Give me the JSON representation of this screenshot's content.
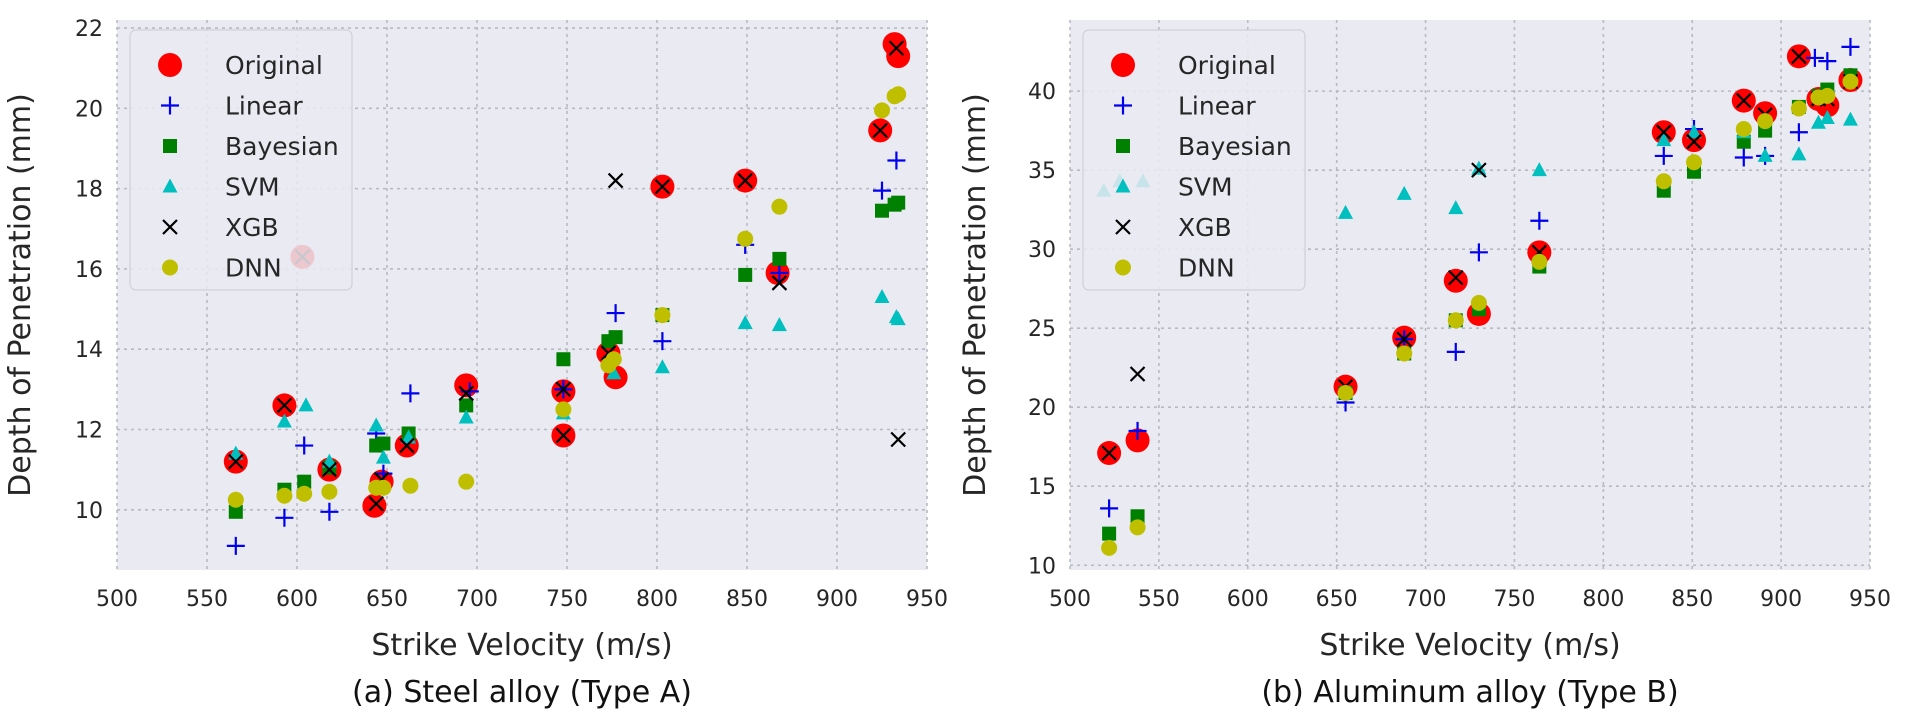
{
  "chart_data": [
    {
      "type": "scatter",
      "caption": "(a) Steel alloy (Type A)",
      "xlabel": "Strike Velocity (m/s)",
      "ylabel": "Depth of Penetration (mm)",
      "xlim": [
        500,
        950
      ],
      "ylim": [
        8.5,
        22.2
      ],
      "xticks": [
        500,
        550,
        600,
        650,
        700,
        750,
        800,
        850,
        900,
        950
      ],
      "yticks": [
        10,
        12,
        14,
        16,
        18,
        20,
        22
      ],
      "grid": true,
      "legend_position": "top-left",
      "series": [
        {
          "name": "Original",
          "marker": "circle",
          "color": "#ff0000",
          "points": [
            [
              566,
              11.2
            ],
            [
              593,
              12.6
            ],
            [
              603,
              16.3
            ],
            [
              618,
              11.0
            ],
            [
              643,
              10.1
            ],
            [
              647,
              10.7
            ],
            [
              661,
              11.6
            ],
            [
              694,
              13.1
            ],
            [
              748,
              12.95
            ],
            [
              748,
              11.85
            ],
            [
              773,
              13.9
            ],
            [
              777,
              13.3
            ],
            [
              803,
              18.05
            ],
            [
              849,
              18.2
            ],
            [
              867,
              15.9
            ],
            [
              924,
              19.45
            ],
            [
              932,
              21.6
            ],
            [
              934,
              21.3
            ]
          ]
        },
        {
          "name": "Linear",
          "marker": "plus",
          "color": "#0000ee",
          "points": [
            [
              566,
              9.1
            ],
            [
              593,
              9.8
            ],
            [
              604,
              11.6
            ],
            [
              618,
              9.95
            ],
            [
              644,
              11.9
            ],
            [
              648,
              10.9
            ],
            [
              663,
              12.9
            ],
            [
              696,
              12.95
            ],
            [
              748,
              13.0
            ],
            [
              777,
              14.9
            ],
            [
              803,
              14.2
            ],
            [
              849,
              16.6
            ],
            [
              868,
              15.9
            ],
            [
              925,
              17.95
            ],
            [
              933,
              18.7
            ]
          ]
        },
        {
          "name": "Bayesian",
          "marker": "square",
          "color": "#008000",
          "points": [
            [
              566,
              9.95
            ],
            [
              593,
              10.5
            ],
            [
              604,
              10.7
            ],
            [
              618,
              11.05
            ],
            [
              644,
              11.6
            ],
            [
              648,
              11.65
            ],
            [
              662,
              11.9
            ],
            [
              694,
              12.6
            ],
            [
              748,
              13.75
            ],
            [
              773,
              14.2
            ],
            [
              777,
              14.3
            ],
            [
              803,
              14.85
            ],
            [
              849,
              15.85
            ],
            [
              868,
              16.25
            ],
            [
              925,
              17.45
            ],
            [
              932,
              17.6
            ],
            [
              934,
              17.65
            ]
          ]
        },
        {
          "name": "SVM",
          "marker": "triangle",
          "color": "#00bfbf",
          "points": [
            [
              566,
              11.4
            ],
            [
              593,
              12.2
            ],
            [
              605,
              12.6
            ],
            [
              618,
              11.2
            ],
            [
              644,
              12.1
            ],
            [
              648,
              11.3
            ],
            [
              662,
              11.8
            ],
            [
              694,
              12.3
            ],
            [
              748,
              12.4
            ],
            [
              776,
              13.4
            ],
            [
              803,
              13.55
            ],
            [
              849,
              14.65
            ],
            [
              868,
              14.6
            ],
            [
              925,
              15.3
            ],
            [
              933,
              14.8
            ],
            [
              934,
              14.75
            ]
          ]
        },
        {
          "name": "XGB",
          "marker": "x",
          "color": "#000000",
          "points": [
            [
              566,
              11.2
            ],
            [
              593,
              12.6
            ],
            [
              603,
              16.3
            ],
            [
              618,
              11.0
            ],
            [
              644,
              10.15
            ],
            [
              647,
              10.75
            ],
            [
              661,
              11.6
            ],
            [
              694,
              12.9
            ],
            [
              748,
              13.0
            ],
            [
              748,
              11.85
            ],
            [
              773,
              13.9
            ],
            [
              777,
              18.2
            ],
            [
              803,
              18.05
            ],
            [
              849,
              18.2
            ],
            [
              868,
              15.65
            ],
            [
              924,
              19.45
            ],
            [
              933,
              21.5
            ],
            [
              934,
              11.75
            ]
          ]
        },
        {
          "name": "DNN",
          "marker": "circle",
          "color": "#bfbf00",
          "points": [
            [
              566,
              10.25
            ],
            [
              593,
              10.35
            ],
            [
              604,
              10.4
            ],
            [
              618,
              10.45
            ],
            [
              644,
              10.55
            ],
            [
              648,
              10.55
            ],
            [
              663,
              10.6
            ],
            [
              694,
              10.7
            ],
            [
              748,
              12.5
            ],
            [
              773,
              13.6
            ],
            [
              776,
              13.75
            ],
            [
              803,
              14.85
            ],
            [
              849,
              16.75
            ],
            [
              868,
              17.55
            ],
            [
              925,
              19.95
            ],
            [
              932,
              20.3
            ],
            [
              934,
              20.35
            ]
          ]
        }
      ]
    },
    {
      "type": "scatter",
      "caption": "(b) Aluminum alloy (Type B)",
      "xlabel": "Strike Velocity (m/s)",
      "ylabel": "Depth of Penetration (mm)",
      "xlim": [
        500,
        950
      ],
      "ylim": [
        9.7,
        44.5
      ],
      "xticks": [
        500,
        550,
        600,
        650,
        700,
        750,
        800,
        850,
        900,
        950
      ],
      "yticks": [
        10,
        15,
        20,
        25,
        30,
        35,
        40
      ],
      "grid": true,
      "legend_position": "top-left",
      "series": [
        {
          "name": "Original",
          "marker": "circle",
          "color": "#ff0000",
          "points": [
            [
              522,
              17.1
            ],
            [
              538,
              17.9
            ],
            [
              655,
              21.3
            ],
            [
              688,
              24.4
            ],
            [
              717,
              28.0
            ],
            [
              730,
              25.9
            ],
            [
              764,
              29.8
            ],
            [
              834,
              37.4
            ],
            [
              851,
              36.9
            ],
            [
              879,
              39.4
            ],
            [
              891,
              38.6
            ],
            [
              910,
              42.2
            ],
            [
              921,
              39.5
            ],
            [
              926,
              39.1
            ],
            [
              939,
              40.7
            ]
          ]
        },
        {
          "name": "Linear",
          "marker": "plus",
          "color": "#0000ee",
          "points": [
            [
              522,
              13.6
            ],
            [
              538,
              18.5
            ],
            [
              655,
              20.3
            ],
            [
              688,
              24.3
            ],
            [
              717,
              23.5
            ],
            [
              730,
              29.8
            ],
            [
              764,
              31.8
            ],
            [
              834,
              35.9
            ],
            [
              851,
              37.6
            ],
            [
              879,
              35.8
            ],
            [
              891,
              35.9
            ],
            [
              910,
              37.4
            ],
            [
              919,
              42.1
            ],
            [
              926,
              41.9
            ],
            [
              939,
              42.8
            ]
          ]
        },
        {
          "name": "Bayesian",
          "marker": "square",
          "color": "#008000",
          "points": [
            [
              522,
              12.0
            ],
            [
              538,
              13.1
            ],
            [
              655,
              20.9
            ],
            [
              688,
              23.4
            ],
            [
              717,
              25.5
            ],
            [
              730,
              26.2
            ],
            [
              764,
              28.9
            ],
            [
              834,
              33.7
            ],
            [
              851,
              34.9
            ],
            [
              879,
              36.8
            ],
            [
              891,
              37.5
            ],
            [
              910,
              39.0
            ],
            [
              921,
              39.7
            ],
            [
              926,
              40.1
            ],
            [
              939,
              41.0
            ]
          ]
        },
        {
          "name": "SVM",
          "marker": "triangle",
          "color": "#00bfbf",
          "points": [
            [
              519,
              33.7
            ],
            [
              528,
              34.3
            ],
            [
              541,
              34.3
            ],
            [
              655,
              32.3
            ],
            [
              688,
              33.5
            ],
            [
              717,
              32.6
            ],
            [
              730,
              35.1
            ],
            [
              764,
              35.0
            ],
            [
              834,
              36.9
            ],
            [
              851,
              37.4
            ],
            [
              879,
              37.4
            ],
            [
              891,
              35.9
            ],
            [
              910,
              36.0
            ],
            [
              921,
              38.0
            ],
            [
              926,
              38.3
            ],
            [
              939,
              38.2
            ]
          ]
        },
        {
          "name": "XGB",
          "marker": "x",
          "color": "#000000",
          "points": [
            [
              522,
              17.1
            ],
            [
              538,
              22.1
            ],
            [
              655,
              21.3
            ],
            [
              688,
              24.3
            ],
            [
              717,
              28.2
            ],
            [
              730,
              35.0
            ],
            [
              764,
              29.8
            ],
            [
              834,
              37.4
            ],
            [
              851,
              36.8
            ],
            [
              879,
              39.4
            ],
            [
              891,
              38.5
            ],
            [
              910,
              42.2
            ],
            [
              921,
              39.5
            ],
            [
              926,
              39.5
            ],
            [
              939,
              40.6
            ]
          ]
        },
        {
          "name": "DNN",
          "marker": "circle",
          "color": "#bfbf00",
          "points": [
            [
              522,
              11.1
            ],
            [
              538,
              12.4
            ],
            [
              655,
              20.9
            ],
            [
              688,
              23.4
            ],
            [
              717,
              25.5
            ],
            [
              730,
              26.6
            ],
            [
              764,
              29.2
            ],
            [
              834,
              34.3
            ],
            [
              851,
              35.5
            ],
            [
              879,
              37.6
            ],
            [
              891,
              38.1
            ],
            [
              910,
              38.9
            ],
            [
              921,
              39.6
            ],
            [
              926,
              39.7
            ],
            [
              939,
              40.6
            ]
          ]
        }
      ]
    }
  ]
}
